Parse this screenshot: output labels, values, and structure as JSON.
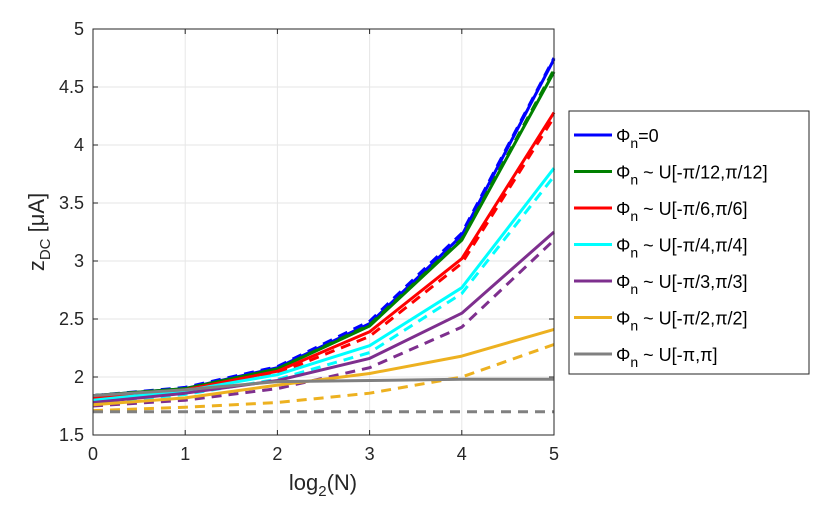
{
  "chart_data": {
    "type": "line",
    "title": "",
    "xlabel": {
      "base": "log",
      "sub": "2",
      "rest": "(N)"
    },
    "ylabel": {
      "base": "z",
      "sub": "DC",
      "rest": " [μA]"
    },
    "xlim": [
      0,
      5
    ],
    "ylim": [
      1.5,
      5
    ],
    "grid": true,
    "legend_position": "outside-right",
    "x": [
      0,
      1,
      2,
      3,
      4,
      5
    ],
    "x_ticks": [
      "0",
      "1",
      "2",
      "3",
      "4",
      "5"
    ],
    "y_ticks": [
      "1.5",
      "2",
      "2.5",
      "3",
      "3.5",
      "4",
      "4.5",
      "5"
    ],
    "series": [
      {
        "name": "Φn=0",
        "legend": {
          "sym": "Φ",
          "sub": "n",
          "rest": "=0"
        },
        "color": "#0000ff",
        "solid": [
          1.84,
          1.9,
          2.08,
          2.46,
          3.22,
          4.74
        ],
        "dashed": [
          1.84,
          1.91,
          2.09,
          2.48,
          3.24,
          4.75
        ]
      },
      {
        "name": "Φn ~ U[-π/12,π/12]",
        "legend": {
          "sym": "Φ",
          "sub": "n",
          "rest": " ~ U[-π/12,π/12]"
        },
        "color": "#008000",
        "solid": [
          1.84,
          1.9,
          2.07,
          2.44,
          3.18,
          4.63
        ],
        "dashed": [
          1.84,
          1.9,
          2.07,
          2.45,
          3.19,
          4.65
        ]
      },
      {
        "name": "Φn ~ U[-π/6,π/6]",
        "legend": {
          "sym": "Φ",
          "sub": "n",
          "rest": " ~ U[-π/6,π/6]"
        },
        "color": "#ff0000",
        "solid": [
          1.82,
          1.89,
          2.05,
          2.39,
          3.02,
          4.28
        ],
        "dashed": [
          1.8,
          1.88,
          2.03,
          2.35,
          2.98,
          4.24
        ]
      },
      {
        "name": "Φn ~ U[-π/4,π/4]",
        "legend": {
          "sym": "Φ",
          "sub": "n",
          "rest": " ~ U[-π/4,π/4]"
        },
        "color": "#00ffff",
        "solid": [
          1.8,
          1.88,
          2.02,
          2.27,
          2.77,
          3.8
        ],
        "dashed": [
          1.77,
          1.85,
          1.98,
          2.21,
          2.72,
          3.73
        ]
      },
      {
        "name": "Φn ~ U[-π/3,π/3]",
        "legend": {
          "sym": "Φ",
          "sub": "n",
          "rest": " ~ U[-π/3,π/3]"
        },
        "color": "#7e2f8e",
        "solid": [
          1.78,
          1.86,
          1.97,
          2.16,
          2.55,
          3.25
        ],
        "dashed": [
          1.75,
          1.8,
          1.9,
          2.08,
          2.43,
          3.18
        ]
      },
      {
        "name": "Φn ~ U[-π/2,π/2]",
        "legend": {
          "sym": "Φ",
          "sub": "n",
          "rest": " ~ U[-π/2,π/2]"
        },
        "color": "#edb120",
        "solid": [
          1.76,
          1.82,
          1.93,
          2.03,
          2.18,
          2.41
        ],
        "dashed": [
          1.71,
          1.74,
          1.78,
          1.86,
          2.0,
          2.28
        ]
      },
      {
        "name": "Φn ~ U[-π,π]",
        "legend": {
          "sym": "Φ",
          "sub": "n",
          "rest": " ~ U[-π,π]"
        },
        "color": "#808080",
        "solid": [
          1.84,
          1.89,
          1.96,
          1.97,
          1.98,
          1.98
        ],
        "dashed": [
          1.7,
          1.7,
          1.7,
          1.7,
          1.7,
          1.7
        ]
      }
    ]
  }
}
